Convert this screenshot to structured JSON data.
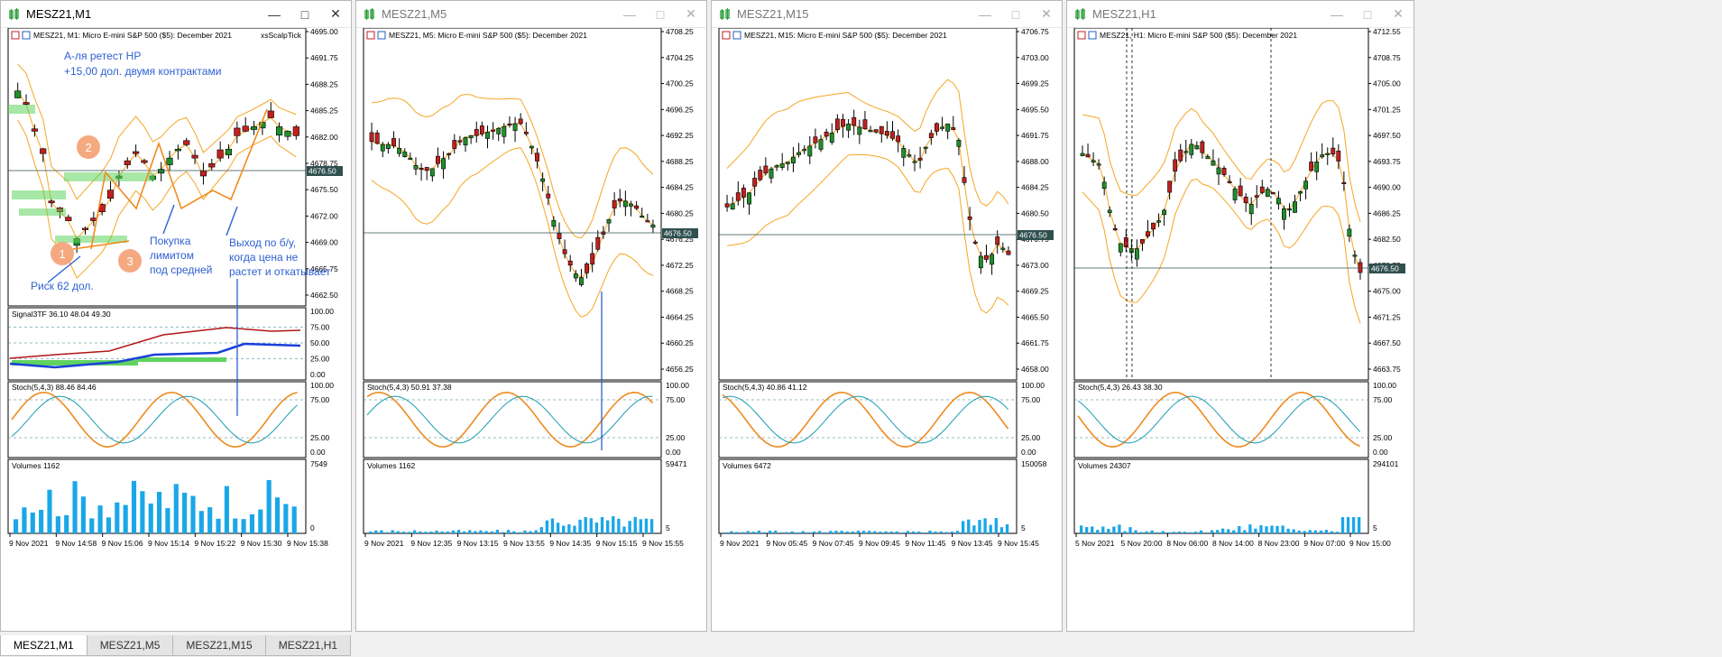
{
  "colors": {
    "bull": "#1f8f2a",
    "bear": "#c22020",
    "band": "#f5a623",
    "signal": "#1a3fd8",
    "sigred": "#b11616",
    "stochK": "#f08a1f",
    "stochD": "#1a9bb0",
    "vol": "#1aa7e8",
    "zone": "#5fd35f"
  },
  "windows": [
    {
      "title": "MESZ21,M1",
      "active": true,
      "header": "MESZ21, M1:  Micro E-mini S&P 500 ($5): December 2021",
      "extra": "xsScalpTick",
      "price_ticks": [
        "4695.00",
        "4691.75",
        "4688.25",
        "4685.25",
        "4682.00",
        "4678.75",
        "4675.50",
        "4672.00",
        "4669.00",
        "4665.75",
        "4662.50"
      ],
      "current_price": "4676.50",
      "signal_label": "Signal3TF 36.10 48.04 49.30",
      "signal_ticks": [
        "100.00",
        "75.00",
        "50.00",
        "25.00",
        "0.00"
      ],
      "stoch_label": "Stoch(5,4,3) 88.46 84.46",
      "stoch_ticks": [
        "100.00",
        "75.00",
        "25.00",
        "0.00"
      ],
      "vol_label": "Volumes 1162",
      "vol_ticks": [
        "7549",
        "0"
      ],
      "time_ticks": [
        "9 Nov 2021",
        "9 Nov 14:58",
        "9 Nov 15:06",
        "9 Nov 15:14",
        "9 Nov 15:22",
        "9 Nov 15:30",
        "9 Nov 15:38"
      ],
      "notes": {
        "top1": "А-ля ретест НР",
        "top2": "+15,00 дол. двумя контрактами",
        "buy1": "Покупка",
        "buy2": "лимитом",
        "buy3": "под средней",
        "exit1": "Выход по б/у,",
        "exit2": "когда цена не",
        "exit3": "растет и откатывает",
        "risk": "Риск 62 дол.",
        "c1": "1",
        "c2": "2",
        "c3": "3"
      }
    },
    {
      "title": "MESZ21,M5",
      "active": false,
      "header": "MESZ21, M5:  Micro E-mini S&P 500 ($5): December 2021",
      "price_ticks": [
        "4708.25",
        "4704.25",
        "4700.25",
        "4696.25",
        "4692.25",
        "4688.25",
        "4684.25",
        "4680.25",
        "4676.25",
        "4672.25",
        "4668.25",
        "4664.25",
        "4660.25",
        "4656.25"
      ],
      "current_price": "4676.50",
      "stoch_label": "Stoch(5,4,3) 50.91 37.38",
      "stoch_ticks": [
        "100.00",
        "75.00",
        "25.00",
        "0.00"
      ],
      "vol_label": "Volumes 1162",
      "vol_ticks": [
        "59471",
        "5"
      ],
      "time_ticks": [
        "9 Nov 2021",
        "9 Nov 12:35",
        "9 Nov 13:15",
        "9 Nov 13:55",
        "9 Nov 14:35",
        "9 Nov 15:15",
        "9 Nov 15:55"
      ]
    },
    {
      "title": "MESZ21,M15",
      "active": false,
      "header": "MESZ21, M15:  Micro E-mini S&P 500 ($5): December 2021",
      "price_ticks": [
        "4706.75",
        "4703.00",
        "4699.25",
        "4695.50",
        "4691.75",
        "4688.00",
        "4684.25",
        "4680.50",
        "4676.75",
        "4673.00",
        "4669.25",
        "4665.50",
        "4661.75",
        "4658.00"
      ],
      "current_price": "4676.50",
      "stoch_label": "Stoch(5,4,3) 40.86 41.12",
      "stoch_ticks": [
        "100.00",
        "75.00",
        "25.00",
        "0.00"
      ],
      "vol_label": "Volumes 6472",
      "vol_ticks": [
        "150058",
        "5"
      ],
      "time_ticks": [
        "9 Nov 2021",
        "9 Nov 05:45",
        "9 Nov 07:45",
        "9 Nov 09:45",
        "9 Nov 11:45",
        "9 Nov 13:45",
        "9 Nov 15:45"
      ]
    },
    {
      "title": "MESZ21,H1",
      "active": false,
      "header": "MESZ21, H1:  Micro E-mini S&P 500 ($5): December 2021",
      "price_ticks": [
        "4712.55",
        "4708.75",
        "4705.00",
        "4701.25",
        "4697.50",
        "4693.75",
        "4690.00",
        "4686.25",
        "4682.50",
        "4678.75",
        "4675.00",
        "4671.25",
        "4667.50",
        "4663.75"
      ],
      "current_price": "4676.50",
      "stoch_label": "Stoch(5,4,3) 26.43 38.30",
      "stoch_ticks": [
        "100.00",
        "75.00",
        "25.00",
        "0.00"
      ],
      "vol_label": "Volumes 24307",
      "vol_ticks": [
        "294101",
        "5"
      ],
      "time_ticks": [
        "5 Nov 2021",
        "5 Nov 20:00",
        "8 Nov 06:00",
        "8 Nov 14:00",
        "8 Nov 23:00",
        "9 Nov 07:00",
        "9 Nov 15:00"
      ]
    }
  ],
  "tabs": [
    "MESZ21,M1",
    "MESZ21,M5",
    "MESZ21,M15",
    "MESZ21,H1"
  ]
}
